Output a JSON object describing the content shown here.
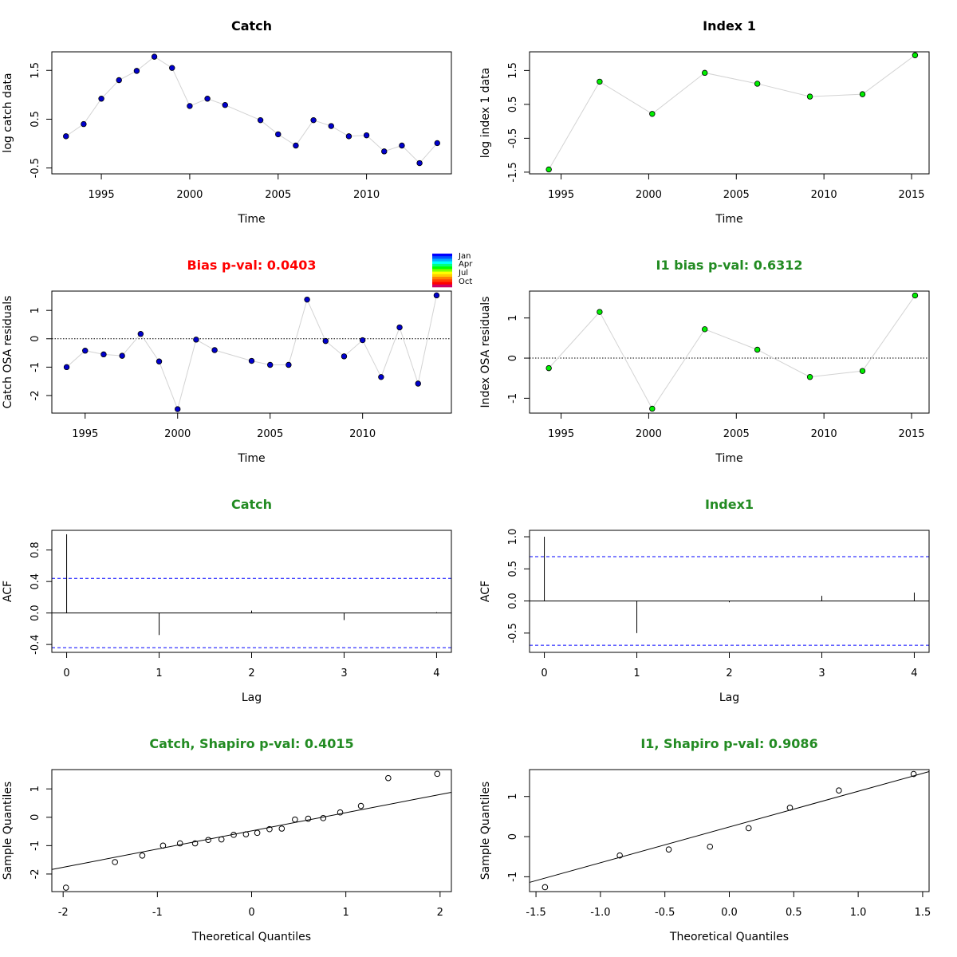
{
  "colors": {
    "catch_points": "#0000cc",
    "index_points": "#00ee00",
    "bias_bad": "#ff0000",
    "good": "#228b22",
    "connector": "#d3d3d3",
    "conf_band": "#0000ff"
  },
  "legend": {
    "labels": [
      "Jan",
      "Apr",
      "Jul",
      "Oct"
    ],
    "color_stops": [
      "#0000ff",
      "#0055ff",
      "#00aaff",
      "#00ffff",
      "#00ff80",
      "#00ff00",
      "#80ff00",
      "#ffff00",
      "#ffcc00",
      "#ff8000",
      "#ff4000",
      "#ff0000",
      "#cc0066"
    ]
  },
  "chart_data": [
    {
      "id": "catch-data",
      "type": "scatter",
      "title": "Catch",
      "title_color": "black",
      "xlabel": "Time",
      "ylabel": "log catch data",
      "xlim": [
        1992.2,
        2014.8
      ],
      "ylim": [
        -0.62,
        1.88
      ],
      "xticks": [
        1995,
        2000,
        2005,
        2010
      ],
      "yticks": [
        -0.5,
        0.5,
        1.5
      ],
      "connect": true,
      "point_style": "filled",
      "point_color": "#0000cc",
      "x": [
        1993,
        1994,
        1995,
        1996,
        1997,
        1998,
        1999,
        2000,
        2001,
        2002,
        2004,
        2005,
        2006,
        2007,
        2008,
        2009,
        2010,
        2011,
        2012,
        2013,
        2014
      ],
      "y": [
        0.15,
        0.4,
        0.92,
        1.3,
        1.49,
        1.78,
        1.55,
        0.77,
        0.92,
        0.79,
        0.48,
        0.19,
        -0.04,
        0.48,
        0.36,
        0.15,
        0.17,
        -0.16,
        -0.04,
        -0.4,
        0.01
      ]
    },
    {
      "id": "index-data",
      "type": "scatter",
      "title": "Index 1",
      "title_color": "black",
      "xlabel": "Time",
      "ylabel": "log index 1 data",
      "xlim": [
        1993.2,
        2016.0
      ],
      "ylim": [
        -1.55,
        2.05
      ],
      "xticks": [
        1995,
        2000,
        2005,
        2010,
        2015
      ],
      "yticks": [
        -1.5,
        -0.5,
        0.5,
        1.5
      ],
      "connect": true,
      "point_style": "filled",
      "point_color": "#00ee00",
      "x": [
        1994.3,
        1997.2,
        2000.2,
        2003.2,
        2006.2,
        2009.2,
        2012.2,
        2015.2
      ],
      "y": [
        -1.42,
        1.17,
        0.22,
        1.43,
        1.11,
        0.73,
        0.8,
        1.95
      ]
    },
    {
      "id": "catch-resid",
      "type": "scatter",
      "title": "Bias p-val: 0.0403",
      "title_color": "red",
      "xlabel": "Time",
      "ylabel": "Catch OSA residuals",
      "xlim": [
        1993.2,
        2014.8
      ],
      "ylim": [
        -2.62,
        1.68
      ],
      "xticks": [
        1995,
        2000,
        2005,
        2010
      ],
      "yticks": [
        -2,
        -1,
        0,
        1
      ],
      "connect": true,
      "point_style": "filled",
      "point_color": "#0000cc",
      "hline": 0,
      "x": [
        1994,
        1995,
        1996,
        1997,
        1998,
        1999,
        2000,
        2001,
        2002,
        2004,
        2005,
        2006,
        2007,
        2008,
        2009,
        2010,
        2011,
        2012,
        2013,
        2014
      ],
      "y": [
        -1.0,
        -0.42,
        -0.55,
        -0.6,
        0.17,
        -0.8,
        -2.48,
        -0.03,
        -0.4,
        -0.78,
        -0.92,
        -0.92,
        1.38,
        -0.08,
        -0.62,
        -0.05,
        -1.35,
        0.4,
        -1.58,
        1.53
      ]
    },
    {
      "id": "index-resid",
      "type": "scatter",
      "title": "I1 bias p-val: 0.6312",
      "title_color": "green",
      "xlabel": "Time",
      "ylabel": "Index OSA residuals",
      "xlim": [
        1993.2,
        2016.0
      ],
      "ylim": [
        -1.37,
        1.67
      ],
      "xticks": [
        1995,
        2000,
        2005,
        2010,
        2015
      ],
      "yticks": [
        -1.0,
        0.0,
        1.0
      ],
      "connect": true,
      "point_style": "filled",
      "point_color": "#00ee00",
      "hline": 0,
      "x": [
        1994.3,
        1997.2,
        2000.2,
        2003.2,
        2006.2,
        2009.2,
        2012.2,
        2015.2
      ],
      "y": [
        -0.25,
        1.15,
        -1.26,
        0.72,
        0.21,
        -0.47,
        -0.32,
        1.56
      ]
    },
    {
      "id": "catch-acf",
      "type": "bar",
      "title": "Catch",
      "title_color": "green",
      "xlabel": "Lag",
      "ylabel": "ACF",
      "xlim": [
        -0.16,
        4.16
      ],
      "ylim": [
        -0.5,
        1.05
      ],
      "xticks": [
        0,
        1,
        2,
        3,
        4
      ],
      "yticks": [
        -0.4,
        0.0,
        0.4,
        0.8
      ],
      "categories": [
        0,
        1,
        2,
        3,
        4
      ],
      "values": [
        1.0,
        -0.28,
        0.03,
        -0.09,
        0.01
      ],
      "conf_limit": 0.44
    },
    {
      "id": "index-acf",
      "type": "bar",
      "title": "Index1",
      "title_color": "green",
      "xlabel": "Lag",
      "ylabel": "ACF",
      "xlim": [
        -0.16,
        4.16
      ],
      "ylim": [
        -0.8,
        1.1
      ],
      "xticks": [
        0,
        1,
        2,
        3,
        4
      ],
      "yticks": [
        -0.5,
        0.0,
        0.5,
        1.0
      ],
      "categories": [
        0,
        1,
        2,
        3,
        4
      ],
      "values": [
        1.0,
        -0.5,
        -0.02,
        0.08,
        0.13
      ],
      "conf_limit": 0.69
    },
    {
      "id": "catch-qq",
      "type": "scatter",
      "title": "Catch, Shapiro p-val: 0.4015",
      "title_color": "green",
      "xlabel": "Theoretical Quantiles",
      "ylabel": "Sample Quantiles",
      "xlim": [
        -2.12,
        2.12
      ],
      "ylim": [
        -2.62,
        1.68
      ],
      "xticks": [
        -2,
        -1,
        0,
        1,
        2
      ],
      "yticks": [
        -2,
        -1,
        0,
        1
      ],
      "connect": false,
      "point_style": "open",
      "point_color": "#000000",
      "qqline": [
        [
          -2.12,
          -1.84
        ],
        [
          2.12,
          0.88
        ]
      ],
      "x": [
        -1.97,
        -1.45,
        -1.16,
        -0.94,
        -0.76,
        -0.6,
        -0.46,
        -0.32,
        -0.19,
        -0.06,
        0.06,
        0.19,
        0.32,
        0.46,
        0.6,
        0.76,
        0.94,
        1.16,
        1.45,
        1.97
      ],
      "y": [
        -2.48,
        -1.58,
        -1.35,
        -1.0,
        -0.92,
        -0.92,
        -0.8,
        -0.78,
        -0.62,
        -0.6,
        -0.55,
        -0.42,
        -0.4,
        -0.08,
        -0.05,
        -0.03,
        0.17,
        0.4,
        1.38,
        1.53
      ]
    },
    {
      "id": "index-qq",
      "type": "scatter",
      "title": "I1, Shapiro p-val: 0.9086",
      "title_color": "green",
      "xlabel": "Theoretical Quantiles",
      "ylabel": "Sample Quantiles",
      "xlim": [
        -1.55,
        1.55
      ],
      "ylim": [
        -1.37,
        1.67
      ],
      "xticks": [
        -1.5,
        -1.0,
        -0.5,
        0.0,
        0.5,
        1.0,
        1.5
      ],
      "yticks": [
        -1.0,
        0.0,
        1.0
      ],
      "connect": false,
      "point_style": "open",
      "point_color": "#000000",
      "qqline": [
        [
          -1.55,
          -1.14
        ],
        [
          1.55,
          1.62
        ]
      ],
      "x": [
        -1.43,
        -0.85,
        -0.47,
        -0.15,
        0.15,
        0.47,
        0.85,
        1.43
      ],
      "y": [
        -1.26,
        -0.47,
        -0.32,
        -0.25,
        0.21,
        0.72,
        1.15,
        1.56
      ]
    }
  ]
}
